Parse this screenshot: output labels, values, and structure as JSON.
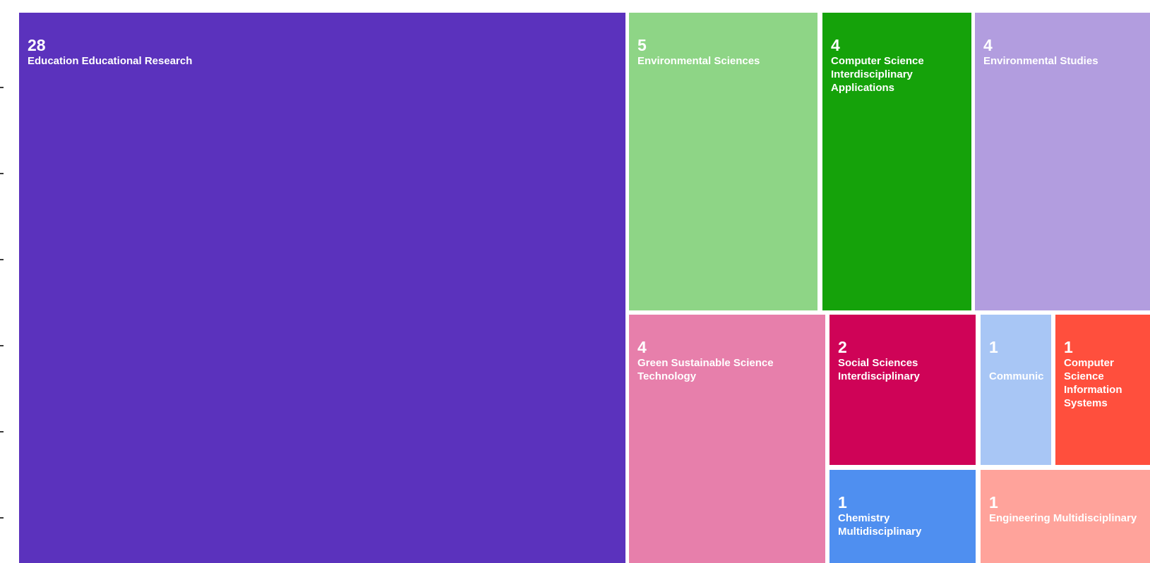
{
  "chart_data": {
    "type": "treemap",
    "title": "",
    "items": [
      {
        "label": "Education Educational Research",
        "value": 28,
        "color": "#5b32bd"
      },
      {
        "label": "Environmental Sciences",
        "value": 5,
        "color": "#8ed586"
      },
      {
        "label": "Computer Science Interdisciplinary Applications",
        "value": 4,
        "color": "#15a20a"
      },
      {
        "label": "Environmental Studies",
        "value": 4,
        "color": "#b29ddf"
      },
      {
        "label": "Green Sustainable Science Technology",
        "value": 4,
        "color": "#e77fab"
      },
      {
        "label": "Social Sciences Interdisciplinary",
        "value": 2,
        "color": "#cf0357"
      },
      {
        "label": "Communic",
        "value": 1,
        "color": "#a8c6f5"
      },
      {
        "label": "Computer Science Information Systems",
        "value": 1,
        "color": "#ff4f3d"
      },
      {
        "label": "Chemistry Multidisciplinary",
        "value": 1,
        "color": "#4f8ff0"
      },
      {
        "label": "Engineering Multidisciplinary",
        "value": 1,
        "color": "#ffa39b"
      }
    ]
  }
}
